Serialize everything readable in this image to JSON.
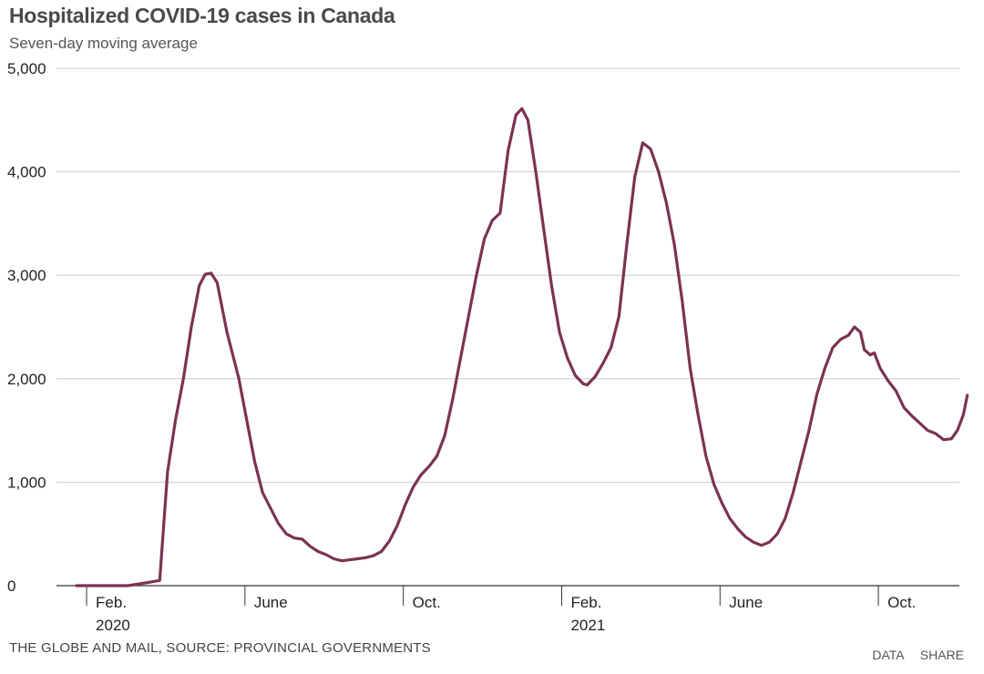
{
  "title": "Hospitalized COVID-19 cases in Canada",
  "subtitle": "Seven-day moving average",
  "source": "THE GLOBE AND MAIL, SOURCE: PROVINCIAL GOVERNMENTS",
  "links": {
    "data": "DATA",
    "share": "SHARE"
  },
  "colors": {
    "line": "#7b3352",
    "grid": "#cccccc",
    "axis": "#333333"
  },
  "chart_data": {
    "type": "line",
    "title": "Hospitalized COVID-19 cases in Canada",
    "subtitle": "Seven-day moving average",
    "xlabel": "",
    "ylabel": "",
    "ylim": [
      0,
      5000
    ],
    "xlim_months": [
      0.7,
      23.0
    ],
    "y_ticks": [
      {
        "value": 0,
        "label": "0"
      },
      {
        "value": 1000,
        "label": "1,000"
      },
      {
        "value": 2000,
        "label": "2,000"
      },
      {
        "value": 3000,
        "label": "3,000"
      },
      {
        "value": 4000,
        "label": "4,000"
      },
      {
        "value": 5000,
        "label": "5,000"
      }
    ],
    "x_ticks": [
      {
        "month": 1,
        "label": "Feb.",
        "year": "2020"
      },
      {
        "month": 5,
        "label": "June",
        "year": ""
      },
      {
        "month": 9,
        "label": "Oct.",
        "year": ""
      },
      {
        "month": 13,
        "label": "Feb.",
        "year": "2021"
      },
      {
        "month": 17,
        "label": "June",
        "year": ""
      },
      {
        "month": 21,
        "label": "Oct.",
        "year": ""
      }
    ],
    "series": [
      {
        "name": "Hospitalized cases (7-day avg)",
        "points": [
          [
            0.7,
            0
          ],
          [
            1.5,
            0
          ],
          [
            2.0,
            0
          ],
          [
            2.5,
            30
          ],
          [
            2.8,
            50
          ],
          [
            3.0,
            1100
          ],
          [
            3.2,
            1600
          ],
          [
            3.4,
            2000
          ],
          [
            3.6,
            2500
          ],
          [
            3.8,
            2900
          ],
          [
            3.95,
            3010
          ],
          [
            4.1,
            3020
          ],
          [
            4.25,
            2930
          ],
          [
            4.5,
            2450
          ],
          [
            4.8,
            2000
          ],
          [
            5.0,
            1600
          ],
          [
            5.2,
            1200
          ],
          [
            5.4,
            900
          ],
          [
            5.6,
            750
          ],
          [
            5.8,
            600
          ],
          [
            6.0,
            500
          ],
          [
            6.2,
            460
          ],
          [
            6.4,
            450
          ],
          [
            6.6,
            380
          ],
          [
            6.8,
            330
          ],
          [
            7.0,
            300
          ],
          [
            7.2,
            260
          ],
          [
            7.4,
            240
          ],
          [
            7.6,
            250
          ],
          [
            7.8,
            260
          ],
          [
            8.0,
            270
          ],
          [
            8.2,
            290
          ],
          [
            8.4,
            330
          ],
          [
            8.6,
            430
          ],
          [
            8.8,
            580
          ],
          [
            9.0,
            780
          ],
          [
            9.2,
            950
          ],
          [
            9.4,
            1070
          ],
          [
            9.6,
            1150
          ],
          [
            9.8,
            1250
          ],
          [
            10.0,
            1450
          ],
          [
            10.2,
            1800
          ],
          [
            10.4,
            2200
          ],
          [
            10.6,
            2600
          ],
          [
            10.8,
            3000
          ],
          [
            11.0,
            3350
          ],
          [
            11.2,
            3530
          ],
          [
            11.4,
            3600
          ],
          [
            11.6,
            4200
          ],
          [
            11.8,
            4550
          ],
          [
            11.95,
            4610
          ],
          [
            12.1,
            4500
          ],
          [
            12.3,
            4000
          ],
          [
            12.5,
            3450
          ],
          [
            12.7,
            2900
          ],
          [
            12.9,
            2450
          ],
          [
            13.1,
            2200
          ],
          [
            13.3,
            2030
          ],
          [
            13.5,
            1950
          ],
          [
            13.6,
            1940
          ],
          [
            13.8,
            2020
          ],
          [
            14.0,
            2150
          ],
          [
            14.2,
            2300
          ],
          [
            14.4,
            2600
          ],
          [
            14.6,
            3300
          ],
          [
            14.8,
            3950
          ],
          [
            15.0,
            4280
          ],
          [
            15.2,
            4220
          ],
          [
            15.4,
            4000
          ],
          [
            15.6,
            3700
          ],
          [
            15.8,
            3300
          ],
          [
            16.0,
            2750
          ],
          [
            16.2,
            2100
          ],
          [
            16.4,
            1650
          ],
          [
            16.6,
            1250
          ],
          [
            16.8,
            980
          ],
          [
            17.0,
            800
          ],
          [
            17.2,
            650
          ],
          [
            17.4,
            550
          ],
          [
            17.6,
            470
          ],
          [
            17.8,
            420
          ],
          [
            18.0,
            390
          ],
          [
            18.2,
            420
          ],
          [
            18.4,
            500
          ],
          [
            18.6,
            650
          ],
          [
            18.8,
            900
          ],
          [
            19.0,
            1200
          ],
          [
            19.2,
            1500
          ],
          [
            19.4,
            1850
          ],
          [
            19.6,
            2100
          ],
          [
            19.8,
            2300
          ],
          [
            20.0,
            2380
          ],
          [
            20.2,
            2420
          ],
          [
            20.35,
            2500
          ],
          [
            20.5,
            2450
          ],
          [
            20.6,
            2280
          ],
          [
            20.75,
            2230
          ],
          [
            20.85,
            2250
          ],
          [
            21.0,
            2100
          ],
          [
            21.2,
            1980
          ],
          [
            21.4,
            1880
          ],
          [
            21.6,
            1720
          ],
          [
            21.8,
            1640
          ],
          [
            22.0,
            1570
          ],
          [
            22.2,
            1500
          ],
          [
            22.4,
            1470
          ],
          [
            22.6,
            1410
          ],
          [
            22.8,
            1420
          ],
          [
            22.95,
            1500
          ],
          [
            23.1,
            1650
          ],
          [
            23.2,
            1840
          ]
        ]
      }
    ]
  }
}
